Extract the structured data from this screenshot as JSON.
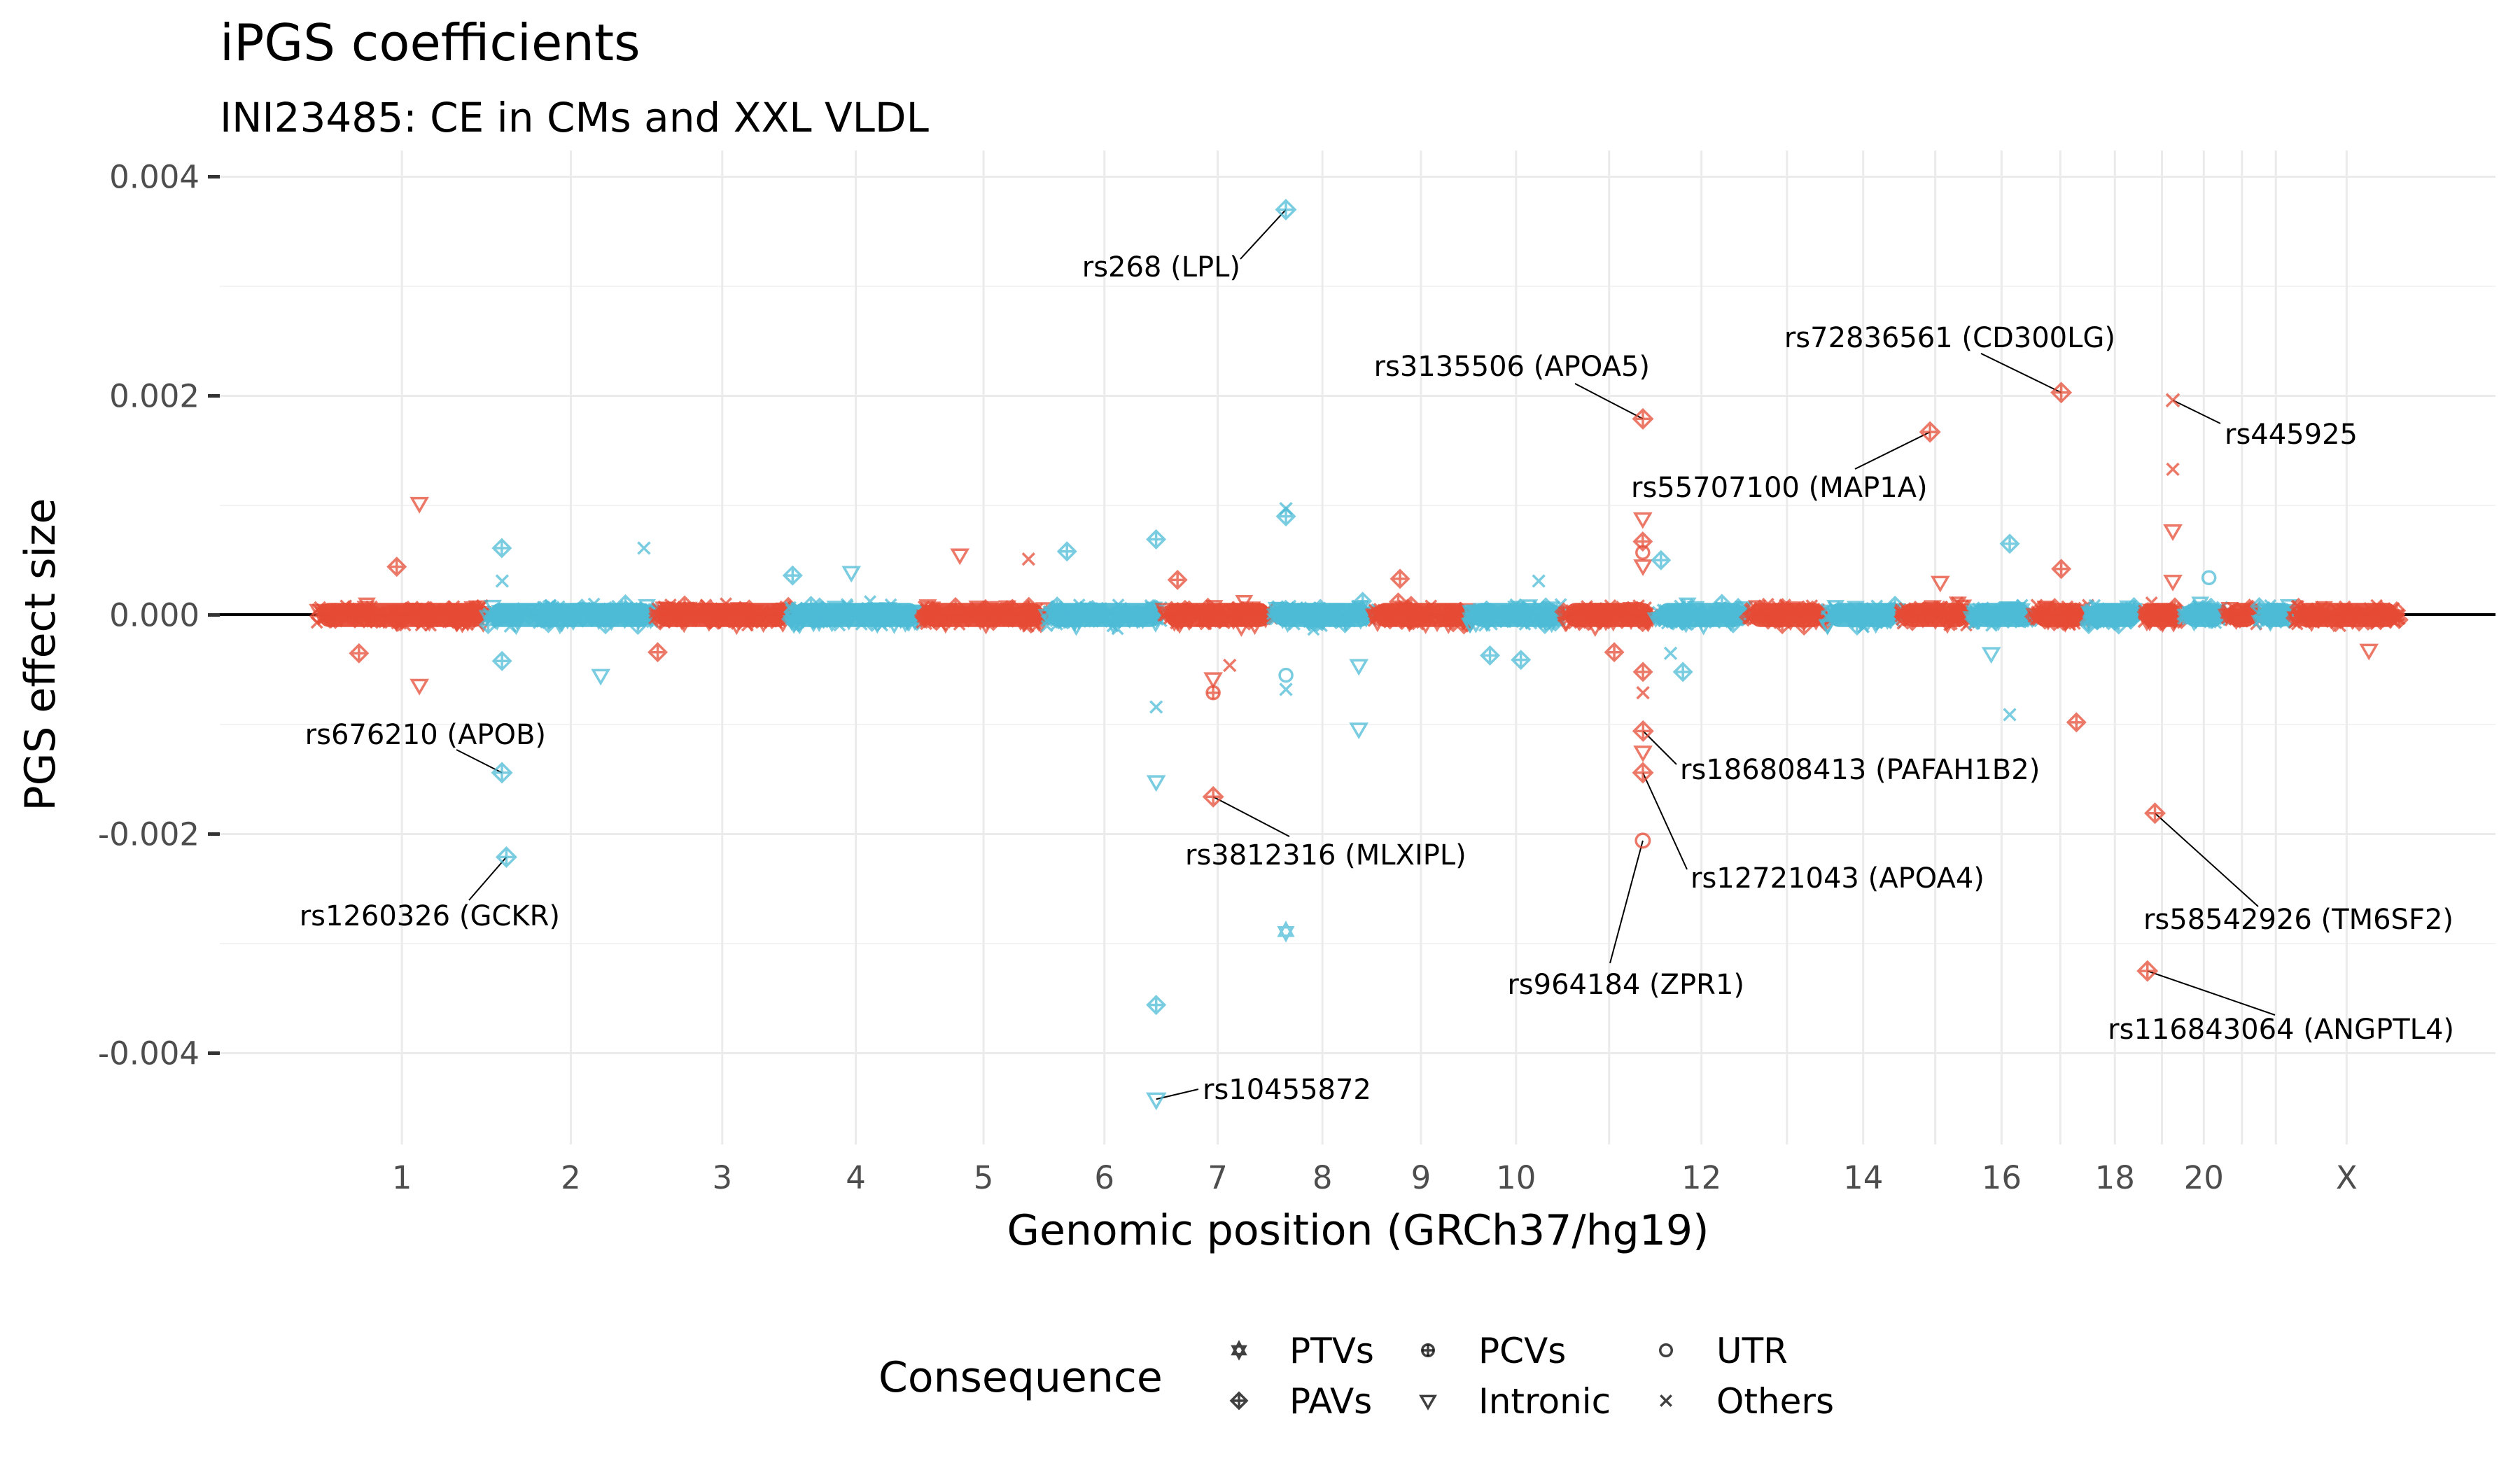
{
  "chart_data": {
    "type": "scatter",
    "subtype": "manhattan",
    "title": "iPGS coefficients",
    "subtitle": "INI23485: CE in CMs and XXL VLDL",
    "xlabel": "Genomic position (GRCh37/hg19)",
    "ylabel": "PGS effect size",
    "ylim": [
      -0.0048,
      0.0041
    ],
    "yticks": [
      0.004,
      0.002,
      0.0,
      -0.002,
      -0.004
    ],
    "ytick_labels": [
      "0.004",
      "0.002",
      "0.000",
      "-0.002",
      "-0.004"
    ],
    "grid": true,
    "reference_line_y": 0,
    "colors": {
      "odd_chromosome": "#E64B35",
      "even_chromosome": "#4DBBD5"
    },
    "chromosomes": [
      {
        "name": "1",
        "length_mb": 249,
        "label": "1"
      },
      {
        "name": "2",
        "length_mb": 243,
        "label": "2"
      },
      {
        "name": "3",
        "length_mb": 198,
        "label": "3"
      },
      {
        "name": "4",
        "length_mb": 191,
        "label": "4"
      },
      {
        "name": "5",
        "length_mb": 181,
        "label": "5"
      },
      {
        "name": "6",
        "length_mb": 171,
        "label": "6"
      },
      {
        "name": "7",
        "length_mb": 159,
        "label": "7"
      },
      {
        "name": "8",
        "length_mb": 146,
        "label": "8"
      },
      {
        "name": "9",
        "length_mb": 141,
        "label": "9"
      },
      {
        "name": "10",
        "length_mb": 136,
        "label": "10"
      },
      {
        "name": "11",
        "length_mb": 135,
        "label": ""
      },
      {
        "name": "12",
        "length_mb": 134,
        "label": "12"
      },
      {
        "name": "13",
        "length_mb": 115,
        "label": ""
      },
      {
        "name": "14",
        "length_mb": 107,
        "label": "14"
      },
      {
        "name": "15",
        "length_mb": 103,
        "label": ""
      },
      {
        "name": "16",
        "length_mb": 90,
        "label": "16"
      },
      {
        "name": "17",
        "length_mb": 81,
        "label": ""
      },
      {
        "name": "18",
        "length_mb": 78,
        "label": "18"
      },
      {
        "name": "19",
        "length_mb": 59,
        "label": ""
      },
      {
        "name": "20",
        "length_mb": 63,
        "label": "20"
      },
      {
        "name": "21",
        "length_mb": 48,
        "label": ""
      },
      {
        "name": "22",
        "length_mb": 51,
        "label": ""
      },
      {
        "name": "X",
        "length_mb": 155,
        "label": "X"
      }
    ],
    "legend": {
      "title": "Consequence",
      "position": "bottom",
      "items": [
        {
          "key": "PTVs",
          "label": "PTVs",
          "shape": "hexagram"
        },
        {
          "key": "PAVs",
          "label": "PAVs",
          "shape": "diamond-plus"
        },
        {
          "key": "PCVs",
          "label": "PCVs",
          "shape": "circle-plus"
        },
        {
          "key": "Intronic",
          "label": "Intronic",
          "shape": "triangle-down"
        },
        {
          "key": "UTR",
          "label": "UTR",
          "shape": "circle"
        },
        {
          "key": "Others",
          "label": "Others",
          "shape": "x"
        }
      ]
    },
    "labeled_variants": [
      {
        "label": "rs268 (LPL)",
        "chr": "8",
        "pos_mb": 19.8,
        "effect": 0.0037,
        "consequence": "PAVs"
      },
      {
        "label": "rs3135506 (APOA5)",
        "chr": "11",
        "pos_mb": 116.7,
        "effect": 0.00179,
        "consequence": "PAVs"
      },
      {
        "label": "rs72836561 (CD300LG)",
        "chr": "17",
        "pos_mb": 41.9,
        "effect": 0.00203,
        "consequence": "PAVs"
      },
      {
        "label": "rs445925",
        "chr": "19",
        "pos_mb": 45.4,
        "effect": 0.00196,
        "consequence": "Others"
      },
      {
        "label": "rs55707100 (MAP1A)",
        "chr": "15",
        "pos_mb": 43.8,
        "effect": 0.00167,
        "consequence": "PAVs"
      },
      {
        "label": "rs676210 (APOB)",
        "chr": "2",
        "pos_mb": 21.2,
        "effect": -0.00144,
        "consequence": "PAVs"
      },
      {
        "label": "rs1260326 (GCKR)",
        "chr": "2",
        "pos_mb": 27.7,
        "effect": -0.00221,
        "consequence": "PAVs"
      },
      {
        "label": "rs3812316 (MLXIPL)",
        "chr": "7",
        "pos_mb": 73.0,
        "effect": -0.00166,
        "consequence": "PAVs"
      },
      {
        "label": "rs186808413 (PAFAH1B2)",
        "chr": "11",
        "pos_mb": 117.0,
        "effect": -0.00106,
        "consequence": "PAVs"
      },
      {
        "label": "rs12721043 (APOA4)",
        "chr": "11",
        "pos_mb": 116.7,
        "effect": -0.00144,
        "consequence": "PAVs"
      },
      {
        "label": "rs964184 (ZPR1)",
        "chr": "11",
        "pos_mb": 116.6,
        "effect": -0.00206,
        "consequence": "UTR"
      },
      {
        "label": "rs58542926 (TM6SF2)",
        "chr": "19",
        "pos_mb": 19.4,
        "effect": -0.00181,
        "consequence": "PAVs"
      },
      {
        "label": "rs116843064 (ANGPTL4)",
        "chr": "19",
        "pos_mb": 8.4,
        "effect": -0.00325,
        "consequence": "PAVs"
      },
      {
        "label": "rs10455872",
        "chr": "6",
        "pos_mb": 161.0,
        "effect": -0.00442,
        "consequence": "Intronic"
      }
    ],
    "other_outliers": [
      {
        "chr": "1",
        "pos_mb": 150,
        "effect": 0.00102,
        "consequence": "Intronic"
      },
      {
        "chr": "1",
        "pos_mb": 117,
        "effect": 0.00044,
        "consequence": "PAVs"
      },
      {
        "chr": "1",
        "pos_mb": 150,
        "effect": -0.00064,
        "consequence": "Intronic"
      },
      {
        "chr": "1",
        "pos_mb": 62,
        "effect": -0.00035,
        "consequence": "PAVs"
      },
      {
        "chr": "2",
        "pos_mb": 21.0,
        "effect": 0.00061,
        "consequence": "PAVs"
      },
      {
        "chr": "2",
        "pos_mb": 21.5,
        "effect": 0.00031,
        "consequence": "Others"
      },
      {
        "chr": "2",
        "pos_mb": 21.3,
        "effect": -0.00042,
        "consequence": "PAVs"
      },
      {
        "chr": "2",
        "pos_mb": 165,
        "effect": -0.00055,
        "consequence": "Intronic"
      },
      {
        "chr": "2",
        "pos_mb": 228,
        "effect": 0.00061,
        "consequence": "Others"
      },
      {
        "chr": "3",
        "pos_mb": 5,
        "effect": -0.00034,
        "consequence": "PAVs"
      },
      {
        "chr": "4",
        "pos_mb": 3.5,
        "effect": 0.00036,
        "consequence": "PAVs"
      },
      {
        "chr": "4",
        "pos_mb": 89,
        "effect": 0.00039,
        "consequence": "Intronic"
      },
      {
        "chr": "5",
        "pos_mb": 56,
        "effect": 0.00055,
        "consequence": "Intronic"
      },
      {
        "chr": "5",
        "pos_mb": 156,
        "effect": 0.00051,
        "consequence": "Others"
      },
      {
        "chr": "6",
        "pos_mb": 31,
        "effect": 0.00058,
        "consequence": "PAVs"
      },
      {
        "chr": "6",
        "pos_mb": 160.8,
        "effect": 0.00069,
        "consequence": "PAVs"
      },
      {
        "chr": "6",
        "pos_mb": 160.9,
        "effect": -0.00084,
        "consequence": "Others"
      },
      {
        "chr": "6",
        "pos_mb": 160.9,
        "effect": -0.00152,
        "consequence": "Intronic"
      },
      {
        "chr": "6",
        "pos_mb": 160.9,
        "effect": -0.00356,
        "consequence": "PAVs"
      },
      {
        "chr": "7",
        "pos_mb": 72.9,
        "effect": -0.00058,
        "consequence": "Intronic"
      },
      {
        "chr": "7",
        "pos_mb": 72.9,
        "effect": -0.00071,
        "consequence": "PCVs"
      },
      {
        "chr": "7",
        "pos_mb": 21,
        "effect": 0.00032,
        "consequence": "PAVs"
      },
      {
        "chr": "7",
        "pos_mb": 97,
        "effect": -0.00046,
        "consequence": "Others"
      },
      {
        "chr": "8",
        "pos_mb": 19.9,
        "effect": 0.00097,
        "consequence": "Others"
      },
      {
        "chr": "8",
        "pos_mb": 19.9,
        "effect": 0.0009,
        "consequence": "PAVs"
      },
      {
        "chr": "8",
        "pos_mb": 19.8,
        "effect": -0.00289,
        "consequence": "PTVs"
      },
      {
        "chr": "8",
        "pos_mb": 19.9,
        "effect": -0.00055,
        "consequence": "UTR"
      },
      {
        "chr": "8",
        "pos_mb": 19.9,
        "effect": -0.00068,
        "consequence": "Others"
      },
      {
        "chr": "8",
        "pos_mb": 126,
        "effect": -0.00104,
        "consequence": "Intronic"
      },
      {
        "chr": "8",
        "pos_mb": 126,
        "effect": -0.00046,
        "consequence": "Intronic"
      },
      {
        "chr": "9",
        "pos_mb": 40,
        "effect": 0.00033,
        "consequence": "PAVs"
      },
      {
        "chr": "10",
        "pos_mb": 101,
        "effect": 0.00031,
        "consequence": "Others"
      },
      {
        "chr": "10",
        "pos_mb": 30,
        "effect": -0.00037,
        "consequence": "PAVs"
      },
      {
        "chr": "10",
        "pos_mb": 75,
        "effect": -0.00041,
        "consequence": "PAVs"
      },
      {
        "chr": "11",
        "pos_mb": 116.5,
        "effect": 0.00088,
        "consequence": "Intronic"
      },
      {
        "chr": "11",
        "pos_mb": 116.5,
        "effect": 0.00067,
        "consequence": "PAVs"
      },
      {
        "chr": "11",
        "pos_mb": 116.5,
        "effect": 0.00057,
        "consequence": "UTR"
      },
      {
        "chr": "11",
        "pos_mb": 116.8,
        "effect": 0.00045,
        "consequence": "Intronic"
      },
      {
        "chr": "11",
        "pos_mb": 116.8,
        "effect": -0.00052,
        "consequence": "PAVs"
      },
      {
        "chr": "11",
        "pos_mb": 116.8,
        "effect": -0.00071,
        "consequence": "Others"
      },
      {
        "chr": "11",
        "pos_mb": 116.8,
        "effect": -0.00125,
        "consequence": "Intronic"
      },
      {
        "chr": "11",
        "pos_mb": 75,
        "effect": -0.00034,
        "consequence": "PAVs"
      },
      {
        "chr": "12",
        "pos_mb": 8,
        "effect": 0.0005,
        "consequence": "PAVs"
      },
      {
        "chr": "12",
        "pos_mb": 22,
        "effect": -0.00035,
        "consequence": "Others"
      },
      {
        "chr": "12",
        "pos_mb": 40,
        "effect": -0.00052,
        "consequence": "PAVs"
      },
      {
        "chr": "15",
        "pos_mb": 58.7,
        "effect": 0.0003,
        "consequence": "Intronic"
      },
      {
        "chr": "16",
        "pos_mb": 56.9,
        "effect": 0.00065,
        "consequence": "PAVs"
      },
      {
        "chr": "16",
        "pos_mb": 56.9,
        "effect": -0.00091,
        "consequence": "Others"
      },
      {
        "chr": "16",
        "pos_mb": 30,
        "effect": -0.00035,
        "consequence": "Intronic"
      },
      {
        "chr": "17",
        "pos_mb": 41.9,
        "effect": 0.00042,
        "consequence": "PAVs"
      },
      {
        "chr": "17",
        "pos_mb": 64,
        "effect": -0.00098,
        "consequence": "PAVs"
      },
      {
        "chr": "19",
        "pos_mb": 45.4,
        "effect": 0.00133,
        "consequence": "Others"
      },
      {
        "chr": "19",
        "pos_mb": 45.4,
        "effect": 0.00077,
        "consequence": "Intronic"
      },
      {
        "chr": "19",
        "pos_mb": 45.4,
        "effect": 0.00031,
        "consequence": "Intronic"
      },
      {
        "chr": "20",
        "pos_mb": 39,
        "effect": 0.00034,
        "consequence": "UTR"
      },
      {
        "chr": "X",
        "pos_mb": 110,
        "effect": -0.00032,
        "consequence": "Intronic"
      }
    ],
    "background_variants": {
      "description": "dense cloud of small-effect variants along every chromosome",
      "typical_effect_range": [
        -0.0002,
        0.0002
      ]
    }
  }
}
